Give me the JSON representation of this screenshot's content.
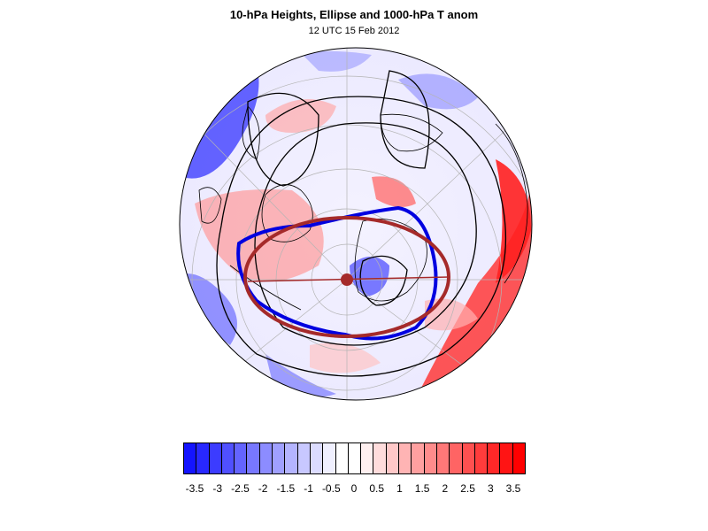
{
  "title": "10-hPa Heights, Ellipse and 1000-hPa T anom",
  "subtitle": "12 UTC 15 Feb 2012",
  "map": {
    "projection": "north polar stereographic",
    "fill_variable": "1000-hPa temperature anomaly",
    "contour_variable": "10-hPa geopotential height",
    "ellipse_color": "#a52a2a",
    "vortex_edge_color": "#0000e0",
    "coastline_color": "#000000",
    "gridline_color": "#b4b4b4"
  },
  "colorbar": {
    "tick_labels": [
      "-3.5",
      "-3",
      "-2.5",
      "-2",
      "-1.5",
      "-1",
      "-0.5",
      "0",
      "0.5",
      "1",
      "1.5",
      "2",
      "2.5",
      "3",
      "3.5"
    ],
    "colors": [
      "#1414ff",
      "#2828ff",
      "#3c3cff",
      "#5050ff",
      "#6464ff",
      "#7878ff",
      "#8c8cff",
      "#a0a0ff",
      "#b4b4ff",
      "#c8c8ff",
      "#dcdcff",
      "#f0f0ff",
      "#ffffff",
      "#ffffff",
      "#fff0f0",
      "#ffdcdc",
      "#ffc8c8",
      "#ffb4b4",
      "#ffa0a0",
      "#ff8c8c",
      "#ff7878",
      "#ff6464",
      "#ff5050",
      "#ff3c3c",
      "#ff2828",
      "#ff1414",
      "#ff0000"
    ]
  }
}
